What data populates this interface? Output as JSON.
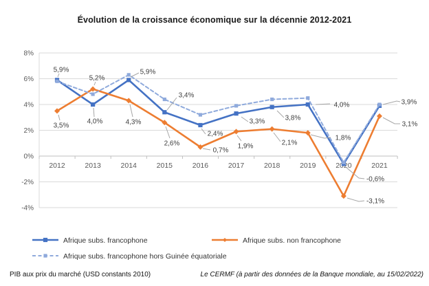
{
  "title": "Évolution de la croissance économique sur la décennie 2012-2021",
  "footer": {
    "left": "PIB aux prix du marché (USD constants 2010)",
    "right": "Le CERMF (à partir des données de la Banque mondiale, au 15/02/2022)"
  },
  "chart_data": {
    "type": "line",
    "x": [
      "2012",
      "2013",
      "2014",
      "2015",
      "2016",
      "2017",
      "2018",
      "2019",
      "2020",
      "2021"
    ],
    "series": [
      {
        "name": "Afrique subs. francophone",
        "color": "#4472C4",
        "style": "solid",
        "marker": "square",
        "values": [
          5.9,
          4.0,
          5.9,
          3.4,
          2.4,
          3.3,
          3.8,
          4.0,
          -0.6,
          3.9
        ],
        "labels": [
          "5,9%",
          "4,0%",
          "5,9%",
          "3,4%",
          "2,4%",
          "3,3%",
          "3,8%",
          "4,0%",
          "-0,6%",
          "3,9%"
        ]
      },
      {
        "name": "Afrique subs. non francophone",
        "color": "#ED7D31",
        "style": "solid",
        "marker": "diamond",
        "values": [
          3.5,
          5.2,
          4.3,
          2.6,
          0.7,
          1.9,
          2.1,
          1.8,
          -3.1,
          3.1
        ],
        "labels": [
          "3,5%",
          "5,2%",
          "4,3%",
          "2,6%",
          "0,7%",
          "1,9%",
          "2,1%",
          "1,8%",
          "-3,1%",
          "3,1%"
        ]
      },
      {
        "name": "Afrique subs. francophone hors Guinée équatoriale",
        "color": "#8FAADC",
        "style": "dashed",
        "marker": "square",
        "values": [
          5.8,
          4.8,
          6.3,
          4.4,
          3.2,
          3.9,
          4.4,
          4.5,
          -0.5,
          4.0
        ],
        "labels": null
      }
    ],
    "y_ticks": [
      "8%",
      "6%",
      "4%",
      "2%",
      "0%",
      "-2%",
      "-4%"
    ],
    "y_tick_values": [
      8,
      6,
      4,
      2,
      0,
      -2,
      -4
    ],
    "ylim": [
      -4,
      8
    ],
    "grid": true,
    "legend_position": "bottom",
    "title": "Évolution de la croissance économique sur la décennie 2012-2021",
    "xlabel": "",
    "ylabel": ""
  },
  "colors": {
    "grid": "#D9D9D9",
    "axis": "#BFBFBF",
    "label_text": "#404040",
    "tick_text": "#595959",
    "leader": "#A6A6A6"
  }
}
